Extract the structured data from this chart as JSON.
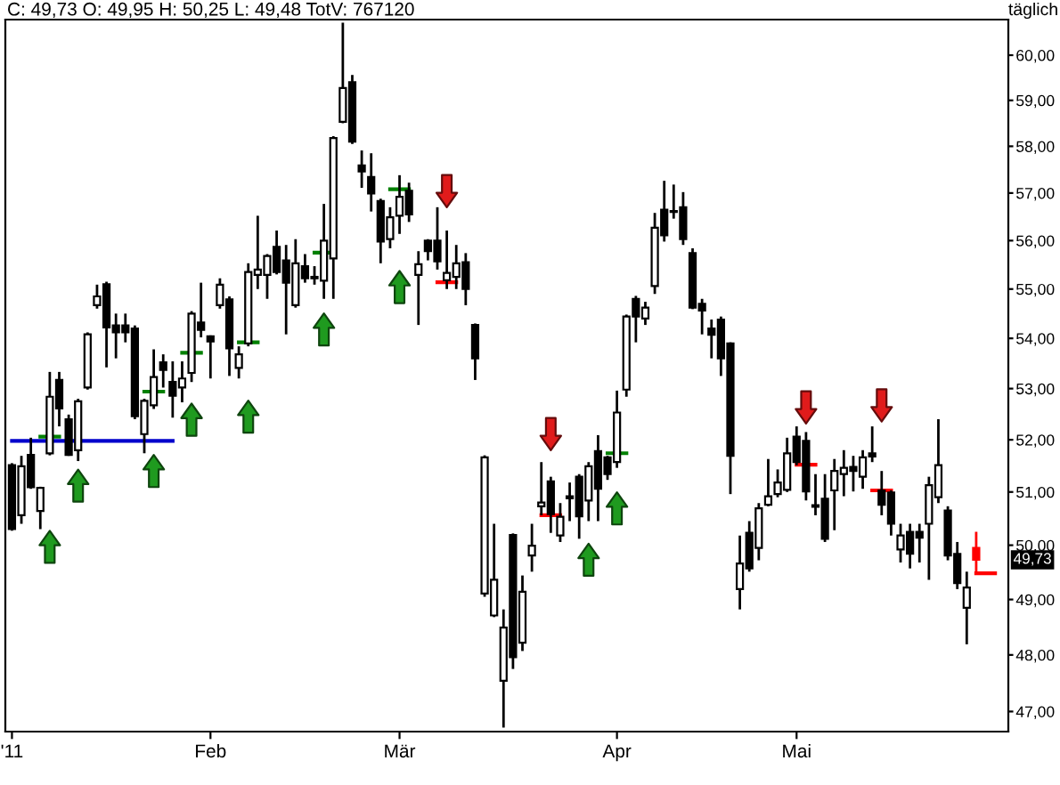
{
  "chart_data": {
    "type": "candlestick",
    "title": "C: 49,73 O: 49,95 H: 50,25 L: 49,48 TotV: 767120",
    "subtitle": "täglich",
    "categories": [
      "'11",
      null,
      null,
      null,
      null,
      null,
      null,
      null,
      null,
      null,
      null,
      null,
      null,
      null,
      null,
      null,
      null,
      null,
      null,
      null,
      null,
      "Feb",
      null,
      null,
      null,
      null,
      null,
      null,
      null,
      null,
      null,
      null,
      null,
      null,
      null,
      null,
      null,
      null,
      null,
      null,
      null,
      "Mär",
      null,
      null,
      null,
      null,
      null,
      null,
      null,
      null,
      null,
      null,
      null,
      null,
      null,
      null,
      null,
      null,
      null,
      null,
      null,
      null,
      null,
      null,
      "Apr",
      null,
      null,
      null,
      null,
      null,
      null,
      null,
      null,
      null,
      null,
      null,
      null,
      null,
      null,
      null,
      null,
      null,
      null,
      "Mai",
      null,
      null,
      null,
      null,
      null,
      null,
      null,
      null,
      null,
      null,
      null,
      null,
      null,
      null,
      null,
      null,
      null,
      null,
      null,
      null,
      null
    ],
    "ohlc": [
      [
        51.51,
        51.55,
        50.27,
        50.3
      ],
      [
        50.56,
        51.69,
        50.4,
        51.49
      ],
      [
        51.71,
        52.04,
        51.06,
        51.09
      ],
      [
        50.64,
        51.1,
        50.3,
        51.08
      ],
      [
        51.74,
        53.33,
        51.7,
        52.84
      ],
      [
        53.17,
        53.33,
        52.26,
        52.61
      ],
      [
        52.4,
        52.49,
        51.69,
        51.71
      ],
      [
        51.8,
        52.8,
        51.59,
        52.75
      ],
      [
        53.02,
        54.12,
        52.98,
        54.08
      ],
      [
        54.67,
        55.09,
        54.6,
        54.85
      ],
      [
        55.1,
        55.15,
        53.42,
        54.22
      ],
      [
        54.26,
        54.5,
        53.6,
        54.12
      ],
      [
        54.26,
        54.5,
        53.92,
        54.12
      ],
      [
        54.2,
        54.26,
        52.4,
        52.46
      ],
      [
        52.11,
        52.8,
        51.74,
        52.76
      ],
      [
        52.67,
        53.78,
        52.6,
        53.23
      ],
      [
        53.52,
        53.68,
        53.02,
        53.37
      ],
      [
        53.13,
        53.54,
        52.43,
        52.86
      ],
      [
        53.02,
        53.54,
        52.73,
        53.2
      ],
      [
        53.31,
        54.55,
        53.13,
        54.5
      ],
      [
        54.32,
        55.13,
        54.02,
        54.17
      ],
      [
        54.04,
        54.06,
        53.2,
        53.94
      ],
      [
        54.67,
        55.22,
        54.6,
        55.09
      ],
      [
        54.79,
        54.85,
        53.25,
        53.8
      ],
      [
        53.41,
        53.84,
        53.2,
        53.68
      ],
      [
        53.9,
        55.53,
        53.84,
        55.35
      ],
      [
        55.29,
        56.52,
        55.0,
        55.4
      ],
      [
        55.29,
        55.72,
        54.8,
        55.68
      ],
      [
        55.87,
        56.21,
        55.3,
        55.35
      ],
      [
        55.59,
        55.91,
        54.08,
        55.13
      ],
      [
        54.67,
        56.03,
        54.62,
        55.53
      ],
      [
        55.47,
        55.72,
        55.13,
        55.22
      ],
      [
        55.25,
        55.47,
        55.09,
        55.22
      ],
      [
        55.17,
        56.77,
        54.8,
        56.0
      ],
      [
        55.63,
        58.22,
        54.8,
        58.18
      ],
      [
        58.53,
        60.73,
        58.5,
        59.27
      ],
      [
        59.4,
        59.56,
        58.05,
        58.1
      ],
      [
        57.59,
        57.91,
        57.11,
        57.46
      ],
      [
        57.34,
        57.85,
        56.61,
        56.99
      ],
      [
        56.83,
        56.88,
        55.53,
        55.98
      ],
      [
        56.03,
        56.7,
        55.84,
        56.49
      ],
      [
        56.52,
        57.38,
        56.14,
        56.92
      ],
      [
        57.05,
        57.22,
        56.39,
        56.55
      ],
      [
        55.29,
        55.78,
        54.27,
        55.51
      ],
      [
        56.0,
        56.03,
        55.59,
        55.78
      ],
      [
        56.0,
        56.7,
        55.4,
        55.57
      ],
      [
        55.18,
        56.21,
        55.0,
        55.33
      ],
      [
        55.25,
        55.91,
        55.0,
        55.53
      ],
      [
        55.55,
        55.74,
        54.67,
        55.0
      ],
      [
        54.27,
        54.3,
        53.17,
        53.6
      ],
      [
        49.11,
        51.7,
        49.05,
        51.66
      ],
      [
        48.71,
        50.4,
        48.68,
        49.36
      ],
      [
        47.54,
        48.82,
        46.72,
        48.49
      ],
      [
        50.19,
        50.22,
        47.75,
        47.96
      ],
      [
        48.22,
        49.44,
        48.07,
        49.14
      ],
      [
        49.81,
        50.4,
        49.51,
        49.99
      ],
      [
        50.73,
        51.57,
        50.56,
        50.8
      ],
      [
        51.2,
        51.29,
        50.23,
        50.58
      ],
      [
        50.18,
        50.79,
        50.06,
        50.53
      ],
      [
        50.92,
        51.18,
        50.45,
        50.88
      ],
      [
        51.29,
        51.34,
        50.12,
        50.54
      ],
      [
        50.84,
        51.57,
        50.45,
        51.49
      ],
      [
        51.78,
        52.09,
        50.45,
        51.06
      ],
      [
        51.66,
        51.69,
        51.23,
        51.34
      ],
      [
        51.57,
        52.96,
        51.46,
        52.53
      ],
      [
        52.98,
        54.48,
        52.84,
        54.44
      ],
      [
        54.8,
        54.86,
        53.92,
        54.44
      ],
      [
        54.4,
        54.74,
        54.27,
        54.62
      ],
      [
        55.06,
        56.58,
        54.9,
        56.27
      ],
      [
        56.65,
        57.26,
        55.98,
        56.11
      ],
      [
        56.62,
        57.18,
        56.46,
        56.6
      ],
      [
        56.7,
        57.02,
        55.91,
        56.03
      ],
      [
        55.74,
        55.84,
        54.59,
        54.62
      ],
      [
        54.7,
        54.8,
        54.08,
        54.56
      ],
      [
        54.2,
        54.38,
        53.6,
        54.07
      ],
      [
        54.38,
        54.44,
        53.25,
        53.6
      ],
      [
        53.9,
        53.92,
        50.96,
        51.69
      ],
      [
        49.19,
        50.18,
        48.82,
        49.66
      ],
      [
        50.23,
        50.45,
        49.51,
        49.57
      ],
      [
        49.95,
        50.79,
        49.72,
        50.69
      ],
      [
        50.76,
        51.63,
        50.73,
        50.92
      ],
      [
        50.96,
        51.43,
        50.9,
        51.18
      ],
      [
        51.04,
        52.04,
        51.0,
        51.74
      ],
      [
        52.06,
        52.26,
        51.51,
        51.57
      ],
      [
        51.98,
        52.15,
        50.84,
        51.01
      ],
      [
        50.75,
        51.34,
        50.56,
        50.72
      ],
      [
        50.87,
        51.34,
        50.06,
        50.12
      ],
      [
        51.03,
        51.63,
        50.28,
        51.4
      ],
      [
        51.34,
        51.8,
        50.92,
        51.46
      ],
      [
        51.48,
        51.69,
        51.01,
        51.4
      ],
      [
        51.29,
        51.8,
        51.06,
        51.66
      ],
      [
        51.74,
        52.26,
        51.57,
        51.68
      ],
      [
        51.03,
        51.4,
        50.56,
        50.76
      ],
      [
        50.99,
        51.03,
        50.18,
        50.4
      ],
      [
        49.92,
        50.4,
        49.68,
        50.18
      ],
      [
        50.25,
        50.4,
        49.57,
        49.84
      ],
      [
        50.25,
        50.4,
        49.68,
        50.14
      ],
      [
        50.4,
        51.29,
        49.36,
        51.13
      ],
      [
        50.9,
        52.4,
        50.79,
        51.51
      ],
      [
        50.65,
        50.73,
        49.72,
        49.81
      ],
      [
        49.84,
        50.06,
        49.19,
        49.3
      ],
      [
        48.85,
        49.51,
        48.19,
        49.22
      ],
      [
        49.95,
        50.25,
        49.48,
        49.73
      ],
      null,
      null
    ],
    "colors": [
      "#000000",
      "#ffffff",
      "#000000",
      "#ffffff",
      "#ffffff",
      "#000000",
      "#000000",
      "#ffffff",
      "#ffffff",
      "#ffffff",
      "#000000",
      "#000000",
      "#000000",
      "#000000",
      "#ffffff",
      "#ffffff",
      "#000000",
      "#000000",
      "#ffffff",
      "#ffffff",
      "#000000",
      "#000000",
      "#ffffff",
      "#000000",
      "#ffffff",
      "#ffffff",
      "#ffffff",
      "#ffffff",
      "#000000",
      "#000000",
      "#ffffff",
      "#000000",
      "#000000",
      "#ffffff",
      "#ffffff",
      "#ffffff",
      "#000000",
      "#000000",
      "#000000",
      "#000000",
      "#ffffff",
      "#ffffff",
      "#000000",
      "#ffffff",
      "#000000",
      "#000000",
      "#ffffff",
      "#ffffff",
      "#000000",
      "#000000",
      "#ffffff",
      "#ffffff",
      "#ffffff",
      "#000000",
      "#ffffff",
      "#ffffff",
      "#ffffff",
      "#000000",
      "#ffffff",
      "#000000",
      "#000000",
      "#ffffff",
      "#000000",
      "#000000",
      "#ffffff",
      "#ffffff",
      "#000000",
      "#ffffff",
      "#ffffff",
      "#000000",
      "#000000",
      "#000000",
      "#000000",
      "#000000",
      "#000000",
      "#000000",
      "#000000",
      "#ffffff",
      "#000000",
      "#ffffff",
      "#ffffff",
      "#ffffff",
      "#ffffff",
      "#000000",
      "#000000",
      "#000000",
      "#000000",
      "#ffffff",
      "#ffffff",
      "#000000",
      "#ffffff",
      "#000000",
      "#000000",
      "#000000",
      "#ffffff",
      "#000000",
      "#000000",
      "#ffffff",
      "#ffffff",
      "#000000",
      "#000000",
      "#ffffff",
      "#ff0000",
      null,
      null
    ],
    "series": [
      {
        "type": "line",
        "color": "#0000cc",
        "values": [
          51.98,
          51.98,
          51.98,
          51.98,
          51.98,
          51.98,
          51.98,
          51.98,
          51.98,
          51.98,
          51.98,
          51.98,
          51.98,
          51.98,
          51.98,
          51.98,
          51.98,
          51.98,
          null,
          null,
          null,
          null,
          null,
          null,
          null,
          null,
          null,
          null,
          null,
          null,
          null,
          null,
          null,
          null,
          null,
          null,
          null,
          null,
          null,
          null,
          null,
          null,
          null,
          null,
          null,
          null,
          null,
          null,
          null,
          null,
          null,
          null,
          null,
          null,
          null,
          null,
          null,
          null,
          null,
          null,
          null,
          null,
          null,
          null,
          null,
          null,
          null,
          null,
          null,
          null,
          null,
          null,
          null,
          null,
          null,
          null,
          null,
          null,
          null,
          null,
          null,
          null,
          null,
          null,
          null,
          null,
          null,
          null,
          null,
          null,
          null,
          null,
          null,
          null,
          null,
          null,
          null,
          null,
          null,
          null,
          null,
          null,
          null,
          null,
          null
        ]
      },
      {
        "type": "line",
        "color": "#008000",
        "values": [
          null,
          null,
          null,
          52.06,
          52.06,
          52.06,
          null,
          null,
          null,
          null,
          null,
          null,
          null,
          null,
          52.94,
          52.94,
          52.94,
          null,
          53.71,
          53.71,
          53.71,
          null,
          null,
          null,
          53.92,
          53.92,
          53.92,
          null,
          null,
          null,
          null,
          null,
          55.75,
          55.75,
          55.75,
          null,
          null,
          null,
          null,
          null,
          57.08,
          57.08,
          57.08,
          null,
          null,
          null,
          null,
          null,
          null,
          null,
          null,
          null,
          null,
          null,
          null,
          null,
          null,
          null,
          null,
          null,
          null,
          null,
          null,
          51.74,
          51.74,
          51.74,
          null,
          null,
          null,
          null,
          null,
          null,
          null,
          null,
          null,
          null,
          null,
          null,
          null,
          null,
          null,
          null,
          null,
          null,
          null,
          null,
          null,
          null,
          null,
          null,
          null,
          null,
          null,
          null,
          null,
          null,
          null,
          null,
          null,
          null,
          null,
          null,
          null,
          null,
          null
        ]
      },
      {
        "type": "line",
        "color": "#ff0000",
        "values": [
          null,
          null,
          null,
          null,
          null,
          null,
          null,
          null,
          null,
          null,
          null,
          null,
          null,
          null,
          null,
          null,
          null,
          null,
          null,
          null,
          null,
          null,
          null,
          null,
          null,
          null,
          null,
          null,
          null,
          null,
          null,
          null,
          null,
          null,
          null,
          null,
          null,
          null,
          null,
          null,
          null,
          null,
          null,
          null,
          null,
          55.14,
          55.14,
          55.14,
          null,
          null,
          null,
          null,
          null,
          null,
          null,
          null,
          50.56,
          50.56,
          50.56,
          null,
          null,
          null,
          null,
          null,
          null,
          null,
          null,
          null,
          null,
          null,
          null,
          null,
          null,
          null,
          null,
          null,
          null,
          null,
          null,
          null,
          null,
          null,
          null,
          51.52,
          51.52,
          51.52,
          null,
          null,
          null,
          null,
          null,
          51.03,
          51.03,
          51.03,
          null,
          null,
          null,
          null,
          null,
          null,
          null,
          null,
          49.48,
          49.48,
          49.48
        ]
      },
      {
        "type": "scatter",
        "color": "#1f9a1f",
        "values": [
          null,
          null,
          null,
          null,
          49.97,
          null,
          null,
          51.12,
          null,
          null,
          null,
          null,
          null,
          null,
          null,
          51.4,
          null,
          null,
          null,
          52.39,
          null,
          null,
          null,
          null,
          null,
          52.45,
          null,
          null,
          null,
          null,
          null,
          null,
          null,
          54.18,
          null,
          null,
          null,
          null,
          null,
          null,
          null,
          55.04,
          null,
          null,
          null,
          null,
          null,
          null,
          null,
          null,
          null,
          null,
          null,
          null,
          null,
          null,
          null,
          null,
          null,
          null,
          null,
          49.73,
          null,
          null,
          50.69,
          null,
          null,
          null,
          null,
          null,
          null,
          null,
          null,
          null,
          null,
          null,
          null,
          null,
          null,
          null,
          null,
          null,
          null,
          null,
          null,
          null,
          null,
          null,
          null,
          null,
          null,
          null,
          null,
          null,
          null,
          null,
          null,
          null,
          null,
          null,
          null,
          null,
          null,
          null,
          null
        ]
      },
      {
        "type": "scatter",
        "color": "#e01b1b",
        "values": [
          null,
          null,
          null,
          null,
          null,
          null,
          null,
          null,
          null,
          null,
          null,
          null,
          null,
          null,
          null,
          null,
          null,
          null,
          null,
          null,
          null,
          null,
          null,
          null,
          null,
          null,
          null,
          null,
          null,
          null,
          null,
          null,
          null,
          null,
          null,
          null,
          null,
          null,
          null,
          null,
          null,
          null,
          null,
          null,
          null,
          null,
          57.04,
          null,
          null,
          null,
          null,
          null,
          null,
          null,
          null,
          null,
          null,
          52.11,
          null,
          null,
          null,
          null,
          null,
          null,
          null,
          null,
          null,
          null,
          null,
          null,
          null,
          null,
          null,
          null,
          null,
          null,
          null,
          null,
          null,
          null,
          null,
          null,
          null,
          null,
          52.63,
          null,
          null,
          null,
          null,
          null,
          null,
          null,
          52.67,
          null,
          null,
          null,
          null,
          null,
          null,
          null,
          null,
          null,
          null,
          null,
          null
        ]
      }
    ],
    "log": "y",
    "ylim": [
      46.65,
      60.8
    ],
    "yticks": [
      {
        "value": 47,
        "label": "47,00"
      },
      {
        "value": 48,
        "label": "48,00"
      },
      {
        "value": 49,
        "label": "49,00"
      },
      {
        "value": 50,
        "label": "50,00"
      },
      {
        "value": 51,
        "label": "51,00"
      },
      {
        "value": 52,
        "label": "52,00"
      },
      {
        "value": 53,
        "label": "53,00"
      },
      {
        "value": 54,
        "label": "54,00"
      },
      {
        "value": 55,
        "label": "55,00"
      },
      {
        "value": 56,
        "label": "56,00"
      },
      {
        "value": 57,
        "label": "57,00"
      },
      {
        "value": 58,
        "label": "58,00"
      },
      {
        "value": 59,
        "label": "59,00"
      },
      {
        "value": 60,
        "label": "60,00"
      }
    ],
    "annotations": [
      {
        "text": "49,73",
        "y": 49.73
      }
    ]
  }
}
